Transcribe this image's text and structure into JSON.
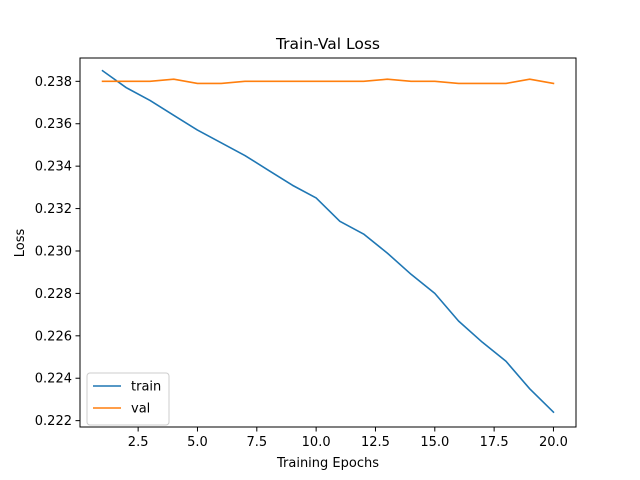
{
  "chart_data": {
    "type": "line",
    "title": "Train-Val Loss",
    "xlabel": "Training Epochs",
    "ylabel": "Loss",
    "xlim": [
      0.05,
      20.95
    ],
    "ylim": [
      0.2217,
      0.2391
    ],
    "xticks": [
      2.5,
      5.0,
      7.5,
      10.0,
      12.5,
      15.0,
      17.5,
      20.0
    ],
    "xtick_labels": [
      "2.5",
      "5.0",
      "7.5",
      "10.0",
      "12.5",
      "15.0",
      "17.5",
      "20.0"
    ],
    "yticks": [
      0.222,
      0.224,
      0.226,
      0.228,
      0.23,
      0.232,
      0.234,
      0.236,
      0.238
    ],
    "ytick_labels": [
      "0.222",
      "0.224",
      "0.226",
      "0.228",
      "0.230",
      "0.232",
      "0.234",
      "0.236",
      "0.238"
    ],
    "grid": false,
    "legend_position": "lower-left",
    "x": [
      1,
      2,
      3,
      4,
      5,
      6,
      7,
      8,
      9,
      10,
      11,
      12,
      13,
      14,
      15,
      16,
      17,
      18,
      19,
      20
    ],
    "series": [
      {
        "name": "train",
        "color": "#1f77b4",
        "values": [
          0.2385,
          0.2377,
          0.2371,
          0.2364,
          0.2357,
          0.2351,
          0.2345,
          0.2338,
          0.2331,
          0.2325,
          0.2314,
          0.2308,
          0.2299,
          0.2289,
          0.228,
          0.2267,
          0.2257,
          0.2248,
          0.2235,
          0.2224
        ]
      },
      {
        "name": "val",
        "color": "#ff7f0e",
        "values": [
          0.238,
          0.238,
          0.238,
          0.2381,
          0.2379,
          0.2379,
          0.238,
          0.238,
          0.238,
          0.238,
          0.238,
          0.238,
          0.2381,
          0.238,
          0.238,
          0.2379,
          0.2379,
          0.2379,
          0.2381,
          0.2379
        ]
      }
    ]
  }
}
